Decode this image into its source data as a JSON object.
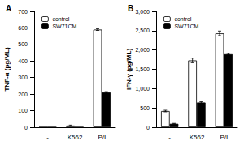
{
  "chart_data": [
    {
      "type": "bar",
      "title": "A",
      "y_label": "TNF-α (pg/ML)",
      "categories": [
        "-",
        "K562",
        "P/I"
      ],
      "series": [
        {
          "name": "control",
          "color": "#ffffff",
          "values": [
            0,
            10,
            590
          ],
          "errors": [
            0,
            3,
            5
          ]
        },
        {
          "name": "SW71CM",
          "color": "#000000",
          "values": [
            0,
            0,
            210
          ],
          "errors": [
            0,
            0,
            5
          ]
        }
      ],
      "ylim": [
        0,
        700
      ],
      "yticks": [
        0,
        100,
        200,
        300,
        400,
        500,
        600,
        700
      ],
      "legend": "upper left",
      "grid": false
    },
    {
      "type": "bar",
      "title": "B",
      "y_label": "IFN-γ (pg/ML)",
      "categories": [
        "-",
        "K562",
        "P/I"
      ],
      "series": [
        {
          "name": "control",
          "color": "#ffffff",
          "values": [
            420,
            1730,
            2430
          ],
          "errors": [
            20,
            60,
            60
          ]
        },
        {
          "name": "SW71CM",
          "color": "#000000",
          "values": [
            90,
            640,
            1890
          ],
          "errors": [
            10,
            20,
            20
          ]
        }
      ],
      "ylim": [
        0,
        3000
      ],
      "yticks": [
        0,
        500,
        {
          "value": 1000,
          "label": "1,000"
        },
        {
          "value": 1500,
          "label": "1,500"
        },
        {
          "value": 2000,
          "label": "2,000"
        },
        {
          "value": 2500,
          "label": "2,500"
        },
        {
          "value": 3000,
          "label": "3,000"
        }
      ],
      "legend": "upper left",
      "grid": false
    }
  ]
}
